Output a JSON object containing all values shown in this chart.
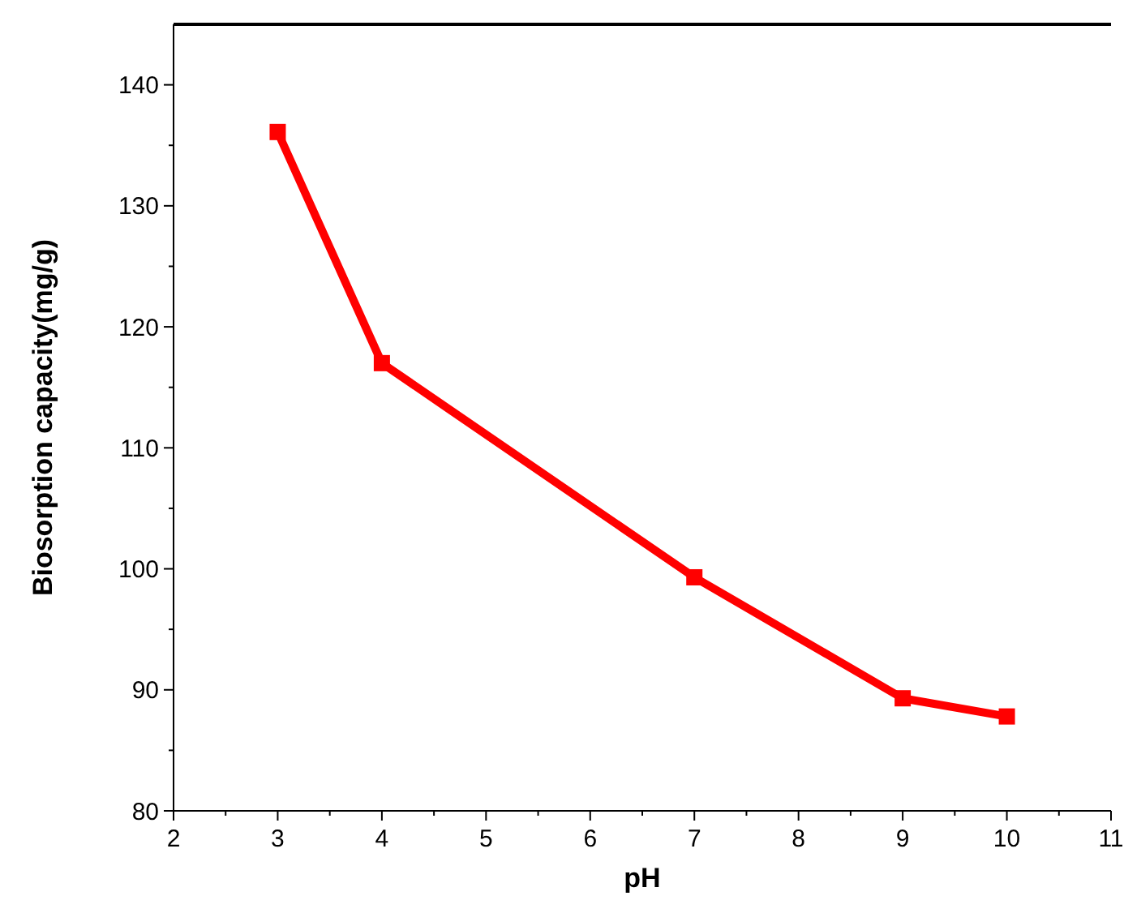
{
  "chart_data": {
    "type": "line",
    "xlabel": "pH",
    "ylabel": "Biosorption capacity(mg/g)",
    "x": [
      3,
      4,
      7,
      9,
      10
    ],
    "series": [
      {
        "color": "#ff0000",
        "values": [
          136.1,
          117.0,
          99.3,
          89.3,
          87.8
        ]
      }
    ],
    "xlim": [
      2,
      11
    ],
    "xticks": [
      2,
      3,
      4,
      5,
      6,
      7,
      8,
      9,
      10,
      11
    ],
    "ylim": [
      80,
      145
    ],
    "yticks": [
      80,
      90,
      100,
      110,
      120,
      130,
      140
    ],
    "marker": "square",
    "line_style": "solid",
    "grid": false
  }
}
